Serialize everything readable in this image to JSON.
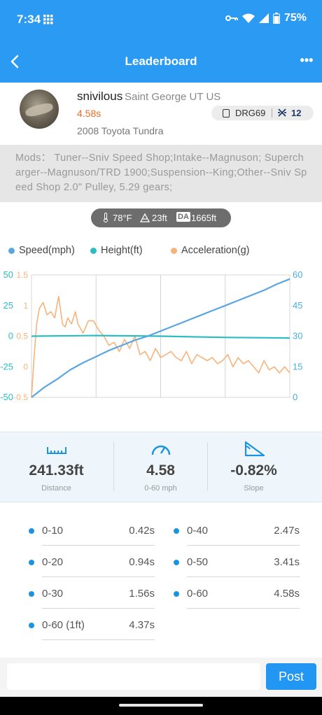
{
  "status_bar": {
    "time": "7:34",
    "battery": "75%"
  },
  "nav": {
    "title": "Leaderboard",
    "more": "•••"
  },
  "profile": {
    "username": "snivilous",
    "location": "Saint George UT US",
    "time": "4.58s",
    "vehicle": "2008 Toyota Tundra",
    "device": "DRG69",
    "rank": "12"
  },
  "mods": "Mods：  Tuner--Sniv Speed Shop;Intake--Magnuson;  Supercharger--Magnuson/TRD  1900;Suspension--King;Other--Sniv Speed Shop 2.0\" Pulley, 5.29 gears;",
  "weather": {
    "temp": "78°F",
    "elevation": "23ft",
    "da_label": "DA",
    "da": "1665ft"
  },
  "legend": [
    {
      "label": "Speed(mph)",
      "color": "#5aa6e2"
    },
    {
      "label": "Height(ft)",
      "color": "#2bbdc2"
    },
    {
      "label": "Acceleration(g)",
      "color": "#f6b37a"
    }
  ],
  "chart_data": {
    "type": "line",
    "left_axis_height": {
      "ticks": [
        "50",
        "25",
        "0",
        "-25",
        "-50"
      ],
      "ylim": [
        -50,
        50
      ],
      "color": "#2bbdc2"
    },
    "left_axis_accel": {
      "ticks": [
        "1.5",
        "1",
        "0.5",
        "0",
        "-0.5"
      ],
      "ylim": [
        -0.5,
        1.5
      ],
      "color": "#f6b37a"
    },
    "right_axis_speed": {
      "ticks": [
        "60",
        "45",
        "30",
        "15",
        "0"
      ],
      "ylim": [
        0,
        60
      ],
      "color": "#4aaee0"
    },
    "grid": true,
    "series": [
      {
        "name": "Speed(mph)",
        "axis": "speed",
        "x": [
          0,
          0.05,
          0.1,
          0.15,
          0.2,
          0.25,
          0.3,
          0.35,
          0.4,
          0.45,
          0.5,
          0.55,
          0.6,
          0.65,
          0.7,
          0.75,
          0.8,
          0.85,
          0.9,
          0.95,
          1.0
        ],
        "values": [
          0,
          5,
          9,
          13.5,
          17,
          20,
          23,
          25.5,
          28,
          30,
          32.5,
          35,
          37.5,
          40,
          42.5,
          45,
          47.5,
          50,
          52.5,
          55.5,
          58
        ]
      },
      {
        "name": "Height(ft)",
        "axis": "height",
        "x": [
          0,
          0.25,
          0.5,
          0.75,
          1.0
        ],
        "values": [
          0,
          0.5,
          0,
          -1,
          -1.5
        ]
      },
      {
        "name": "Acceleration(g)",
        "axis": "accel",
        "x": [
          0,
          0.01,
          0.02,
          0.03,
          0.045,
          0.06,
          0.075,
          0.09,
          0.105,
          0.12,
          0.13,
          0.14,
          0.155,
          0.17,
          0.18,
          0.2,
          0.22,
          0.24,
          0.26,
          0.28,
          0.3,
          0.32,
          0.34,
          0.36,
          0.38,
          0.4,
          0.42,
          0.44,
          0.46,
          0.48,
          0.5,
          0.52,
          0.54,
          0.56,
          0.58,
          0.6,
          0.62,
          0.64,
          0.66,
          0.68,
          0.7,
          0.72,
          0.74,
          0.76,
          0.78,
          0.8,
          0.82,
          0.84,
          0.86,
          0.88,
          0.9,
          0.92,
          0.94,
          0.96,
          0.98,
          1.0
        ],
        "values": [
          -0.5,
          0.15,
          0.7,
          0.95,
          1.05,
          0.85,
          0.9,
          0.8,
          1.15,
          0.7,
          0.65,
          0.8,
          0.7,
          0.9,
          0.7,
          0.55,
          0.75,
          0.75,
          0.6,
          0.5,
          0.35,
          0.4,
          0.25,
          0.45,
          0.3,
          0.5,
          0.2,
          0.25,
          0.1,
          0.3,
          0.15,
          0.2,
          0.25,
          0.15,
          0.1,
          0.25,
          0.05,
          0.2,
          0.15,
          0.1,
          0.15,
          0.05,
          0.1,
          0.2,
          0.0,
          0.15,
          0.05,
          0.1,
          0.0,
          -0.1,
          0.1,
          -0.05,
          0.0,
          -0.1,
          0.0,
          -0.1
        ]
      }
    ]
  },
  "stats": [
    {
      "value": "241.33ft",
      "label": "Distance",
      "icon": "ruler-icon"
    },
    {
      "value": "4.58",
      "label": "0-60 mph",
      "icon": "speedometer-icon"
    },
    {
      "value": "-0.82%",
      "label": "Slope",
      "icon": "slope-icon"
    }
  ],
  "splits": [
    {
      "key": "0-10",
      "value": "0.42s"
    },
    {
      "key": "0-40",
      "value": "2.47s"
    },
    {
      "key": "0-20",
      "value": "0.94s"
    },
    {
      "key": "0-50",
      "value": "3.41s"
    },
    {
      "key": "0-30",
      "value": "1.56s"
    },
    {
      "key": "0-60",
      "value": "4.58s"
    },
    {
      "key": "0-60 (1ft)",
      "value": "4.37s"
    }
  ],
  "comment": {
    "placeholder": "",
    "post_label": "Post"
  }
}
